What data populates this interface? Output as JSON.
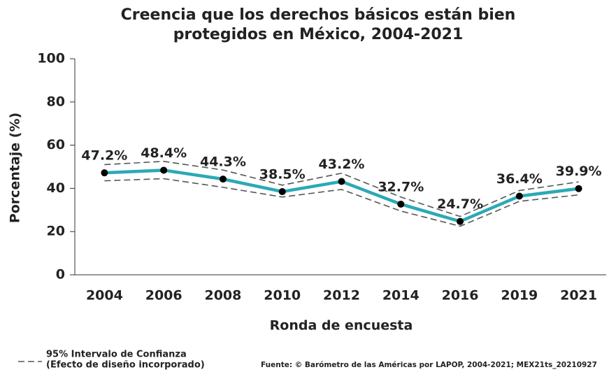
{
  "chart_data": {
    "type": "line",
    "title": [
      "Creencia que los derechos básicos están bien",
      "protegidos en México, 2004-2021"
    ],
    "x_label": "Ronda de encuesta",
    "y_label": "Porcentaje (%)",
    "categories": [
      "2004",
      "2006",
      "2008",
      "2010",
      "2012",
      "2014",
      "2016",
      "2019",
      "2021"
    ],
    "values": [
      47.2,
      48.4,
      44.3,
      38.5,
      43.2,
      32.7,
      24.7,
      36.4,
      39.9
    ],
    "value_labels": [
      "47.2%",
      "48.4%",
      "44.3%",
      "38.5%",
      "43.2%",
      "32.7%",
      "24.7%",
      "36.4%",
      "39.9%"
    ],
    "color": "#2ba9b6",
    "marker_color": "#000000",
    "ci": {
      "upper": [
        51,
        52.5,
        48.5,
        41.5,
        47,
        36,
        27,
        39,
        43
      ],
      "lower": [
        43.5,
        44.5,
        40.5,
        36,
        39.5,
        29.5,
        22.5,
        34,
        37
      ],
      "color": "#555555",
      "legend": [
        "95% Intervalo de Confianza",
        "(Efecto de diseño incorporado)"
      ]
    },
    "ylim": [
      0,
      100
    ],
    "yticks": [
      0,
      20,
      40,
      60,
      80,
      100
    ],
    "source": "Fuente: © Barómetro de las Américas por LAPOP, 2004-2021; MEX21ts_20210927"
  }
}
